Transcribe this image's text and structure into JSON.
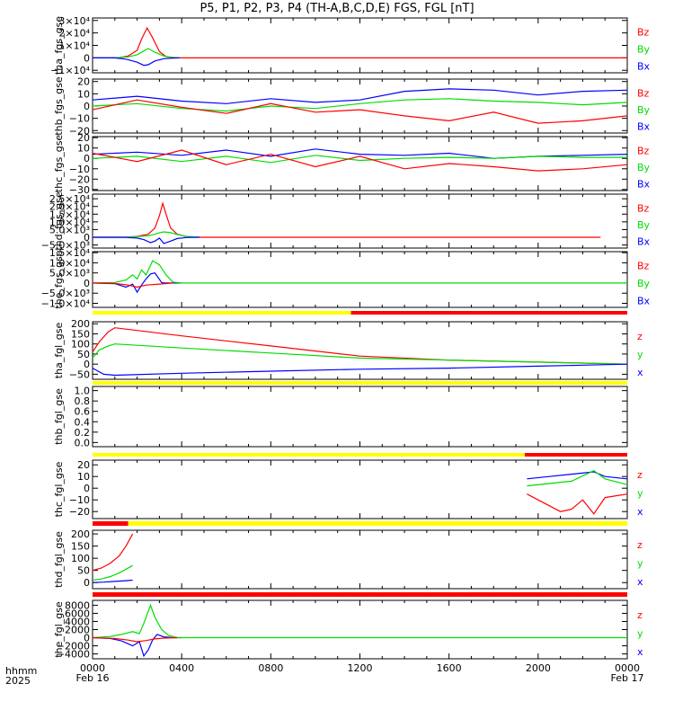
{
  "title": "P5, P1, P2, P3, P4 (TH-A,B,C,D,E) FGS, FGL [nT]",
  "colors": {
    "x": "#0000ff",
    "y": "#00dd00",
    "z": "#ff0000",
    "bar_red": "#ff0000",
    "bar_yellow": "#ffff00",
    "axis": "#000000"
  },
  "footer": {
    "row1": "hhmm",
    "row2": "2025"
  },
  "x_axis": {
    "range_hours": [
      0,
      24
    ],
    "ticks": [
      {
        "label": "0000",
        "sub": "Feb 16"
      },
      {
        "label": "0400",
        "sub": ""
      },
      {
        "label": "0800",
        "sub": ""
      },
      {
        "label": "1200",
        "sub": ""
      },
      {
        "label": "1600",
        "sub": ""
      },
      {
        "label": "2000",
        "sub": ""
      },
      {
        "label": "0000",
        "sub": "Feb 17"
      }
    ]
  },
  "chart_data": [
    {
      "type": "line",
      "ylabel": "tha_fgs_gse",
      "legend": [
        "Bz",
        "By",
        "Bx"
      ],
      "ylim": [
        -12000,
        32000
      ],
      "yticks": [
        "3×10⁴",
        "2×10⁴",
        "1×10⁴",
        "0",
        "−1×10⁴"
      ],
      "ytick_values": [
        30000,
        20000,
        10000,
        0,
        -10000
      ],
      "series": [
        {
          "name": "Bz",
          "color": "#ff0000",
          "x": [
            0,
            0.8,
            1.2,
            1.6,
            2.0,
            2.2,
            2.45,
            2.7,
            3.0,
            3.3,
            3.6,
            3.9,
            24
          ],
          "y": [
            0,
            0,
            200,
            1500,
            6000,
            15000,
            24000,
            16000,
            5000,
            1000,
            300,
            0,
            0
          ]
        },
        {
          "name": "By",
          "color": "#00dd00",
          "x": [
            0,
            1.0,
            1.6,
            2.0,
            2.3,
            2.5,
            2.8,
            3.2,
            3.6,
            3.9
          ],
          "y": [
            0,
            0,
            800,
            2500,
            5500,
            7500,
            4500,
            1500,
            200,
            0
          ]
        },
        {
          "name": "Bx",
          "color": "#0000ff",
          "x": [
            0,
            1.0,
            1.5,
            2.0,
            2.3,
            2.5,
            2.8,
            3.2,
            3.6,
            3.9
          ],
          "y": [
            0,
            0,
            -1000,
            -3500,
            -6000,
            -5500,
            -2500,
            -700,
            -200,
            0
          ]
        }
      ]
    },
    {
      "type": "line",
      "ylabel": "thb_fgs_gse",
      "legend": [
        "Bz",
        "By",
        "Bx"
      ],
      "ylim": [
        -22,
        22
      ],
      "yticks": [
        "20",
        "10",
        "0",
        "−10",
        "−20"
      ],
      "ytick_values": [
        20,
        10,
        0,
        -10,
        -20
      ],
      "series": [
        {
          "name": "Bx",
          "color": "#0000ff",
          "x": [
            0,
            2,
            4,
            6,
            8,
            10,
            12,
            14,
            16,
            18,
            20,
            22,
            24
          ],
          "y": [
            5,
            8,
            4,
            2,
            6,
            3,
            5,
            12,
            14,
            13,
            9,
            12,
            13
          ]
        },
        {
          "name": "By",
          "color": "#00dd00",
          "x": [
            0,
            2,
            4,
            6,
            8,
            10,
            12,
            14,
            16,
            18,
            20,
            22,
            24
          ],
          "y": [
            0,
            2,
            -2,
            -4,
            0,
            -2,
            2,
            5,
            6,
            4,
            3,
            1,
            3
          ]
        },
        {
          "name": "Bz",
          "color": "#ff0000",
          "x": [
            0,
            2,
            4,
            6,
            8,
            10,
            12,
            14,
            16,
            18,
            20,
            22,
            24
          ],
          "y": [
            -3,
            5,
            -1,
            -6,
            2,
            -5,
            -3,
            -8,
            -12,
            -5,
            -14,
            -12,
            -8
          ]
        }
      ]
    },
    {
      "type": "line",
      "ylabel": "thc_fgs_gse",
      "legend": [
        "Bz",
        "By",
        "Bx"
      ],
      "ylim": [
        -31,
        21
      ],
      "yticks": [
        "20",
        "10",
        "0",
        "−10",
        "−20",
        "−30"
      ],
      "ytick_values": [
        20,
        10,
        0,
        -10,
        -20,
        -30
      ],
      "series": [
        {
          "name": "Bx",
          "color": "#0000ff",
          "x": [
            0,
            2,
            4,
            6,
            8,
            10,
            12,
            14,
            16,
            18,
            20,
            22,
            24
          ],
          "y": [
            4,
            6,
            3,
            8,
            2,
            9,
            4,
            3,
            5,
            0,
            2,
            3,
            4
          ]
        },
        {
          "name": "By",
          "color": "#00dd00",
          "x": [
            0,
            2,
            4,
            6,
            8,
            10,
            12,
            14,
            16,
            18,
            20,
            22,
            24
          ],
          "y": [
            0,
            2,
            -3,
            2,
            -4,
            3,
            -2,
            0,
            1,
            0,
            2,
            1,
            1
          ]
        },
        {
          "name": "Bz",
          "color": "#ff0000",
          "x": [
            0,
            2,
            4,
            6,
            8,
            10,
            12,
            14,
            16,
            18,
            20,
            22,
            24
          ],
          "y": [
            5,
            -3,
            8,
            -6,
            4,
            -8,
            2,
            -10,
            -5,
            -8,
            -12,
            -10,
            -6
          ]
        }
      ]
    },
    {
      "type": "line",
      "ylabel": "thd_fgs_gse",
      "legend": [
        "Bz",
        "By",
        "Bx"
      ],
      "ylim": [
        -7000,
        28000
      ],
      "yticks": [
        "2.5×10⁴",
        "2.0×10⁴",
        "1.5×10⁴",
        "1.0×10⁴",
        "5.0×10³",
        "0",
        "−5.0×10³"
      ],
      "ytick_values": [
        25000,
        20000,
        15000,
        10000,
        5000,
        0,
        -5000
      ],
      "series": [
        {
          "name": "Bz",
          "color": "#ff0000",
          "x": [
            0,
            1.5,
            2.0,
            2.5,
            2.8,
            3.0,
            3.15,
            3.3,
            3.5,
            3.8,
            4.2,
            4.8,
            22.8
          ],
          "y": [
            0,
            100,
            500,
            2000,
            6000,
            14000,
            22000,
            15000,
            6000,
            2000,
            500,
            0,
            0
          ]
        },
        {
          "name": "By",
          "color": "#00dd00",
          "x": [
            0,
            1.5,
            2.0,
            2.5,
            2.8,
            3.0,
            3.2,
            3.5,
            3.8,
            4.2,
            4.8
          ],
          "y": [
            0,
            100,
            400,
            1000,
            2000,
            3000,
            3500,
            3000,
            1800,
            600,
            0
          ]
        },
        {
          "name": "Bx",
          "color": "#0000ff",
          "x": [
            0,
            1.5,
            2.0,
            2.3,
            2.6,
            2.8,
            3.0,
            3.2,
            3.5,
            3.8,
            4.2,
            4.8
          ],
          "y": [
            0,
            -100,
            -500,
            -1500,
            -3500,
            -2500,
            -500,
            -4000,
            -2500,
            -800,
            -200,
            0
          ]
        }
      ]
    },
    {
      "type": "line",
      "ylabel": "the_fgs_gse",
      "legend": [
        "Bz",
        "By",
        "Bx"
      ],
      "ylim": [
        -12000,
        15500
      ],
      "yticks": [
        "1.5×10⁴",
        "1.0×10⁴",
        "5.0×10³",
        "0",
        "−5.0×10³",
        "−1.0×10⁴"
      ],
      "ytick_values": [
        15000,
        10000,
        5000,
        0,
        -5000,
        -10000
      ],
      "series": [
        {
          "name": "Bx",
          "color": "#0000ff",
          "x": [
            0,
            1.0,
            1.5,
            1.8,
            2.0,
            2.2,
            2.4,
            2.6,
            2.8,
            3.1,
            3.2,
            3.6,
            4.0
          ],
          "y": [
            0,
            -300,
            -2000,
            -500,
            -4500,
            -1000,
            2000,
            4500,
            5000,
            200,
            0,
            0,
            0
          ]
        },
        {
          "name": "By",
          "color": "#00dd00",
          "x": [
            0,
            1.0,
            1.5,
            1.8,
            2.0,
            2.2,
            2.4,
            2.7,
            3.0,
            3.3,
            3.6,
            4.0,
            24
          ],
          "y": [
            0,
            300,
            1500,
            4000,
            2000,
            6500,
            4000,
            11000,
            9000,
            4000,
            500,
            0,
            0
          ]
        },
        {
          "name": "Bz",
          "color": "#ff0000",
          "x": [
            0,
            1.0,
            1.6,
            2.0,
            2.4,
            3.0,
            3.6
          ],
          "y": [
            0,
            -200,
            -1000,
            -2000,
            -1000,
            -500,
            0
          ]
        }
      ]
    },
    {
      "type": "line",
      "ylabel": "tha_fgl_gse",
      "legend": [
        "z",
        "y",
        "x"
      ],
      "ylim": [
        -75,
        210
      ],
      "yticks": [
        "200",
        "150",
        "100",
        "50",
        "0",
        "−50"
      ],
      "ytick_values": [
        200,
        150,
        100,
        50,
        0,
        -50
      ],
      "series": [
        {
          "name": "z",
          "color": "#ff0000",
          "x": [
            0,
            0.3,
            0.7,
            1.0,
            4,
            8,
            12,
            16,
            20,
            22,
            24
          ],
          "y": [
            60,
            110,
            160,
            180,
            140,
            90,
            40,
            20,
            10,
            5,
            0
          ]
        },
        {
          "name": "y",
          "color": "#00dd00",
          "x": [
            0,
            0.3,
            0.7,
            1.0,
            4,
            8,
            12,
            16,
            20,
            22,
            24
          ],
          "y": [
            30,
            70,
            90,
            100,
            80,
            55,
            30,
            20,
            10,
            5,
            0
          ]
        },
        {
          "name": "x",
          "color": "#0000ff",
          "x": [
            0,
            0.5,
            1.0,
            4,
            8,
            12,
            16,
            20,
            22,
            24
          ],
          "y": [
            -20,
            -50,
            -55,
            -45,
            -35,
            -25,
            -20,
            -10,
            -5,
            0
          ]
        }
      ]
    },
    {
      "type": "line",
      "ylabel": "thb_fgl_gse",
      "legend": [],
      "ylim": [
        -0.08,
        1.08
      ],
      "yticks": [
        "1.0",
        "0.8",
        "0.6",
        "0.4",
        "0.2",
        "0.0"
      ],
      "ytick_values": [
        1.0,
        0.8,
        0.6,
        0.4,
        0.2,
        0.0
      ],
      "series": []
    },
    {
      "type": "line",
      "ylabel": "thc_fgl_gse",
      "legend": [
        "z",
        "y",
        "x"
      ],
      "ylim": [
        -26,
        24
      ],
      "yticks": [
        "20",
        "10",
        "0",
        "−10",
        "−20"
      ],
      "ytick_values": [
        20,
        10,
        0,
        -10,
        -20
      ],
      "series": [
        {
          "name": "x",
          "color": "#0000ff",
          "x": [
            19.5,
            20.5,
            21.5,
            22.5,
            23.0,
            24
          ],
          "y": [
            8,
            10,
            12,
            14,
            10,
            8
          ]
        },
        {
          "name": "y",
          "color": "#00dd00",
          "x": [
            19.5,
            20.5,
            21.5,
            22.5,
            23.0,
            24
          ],
          "y": [
            2,
            4,
            6,
            15,
            8,
            3
          ]
        },
        {
          "name": "z",
          "color": "#ff0000",
          "x": [
            19.5,
            20.5,
            21.0,
            21.5,
            22.0,
            22.5,
            23.0,
            24
          ],
          "y": [
            -5,
            -15,
            -20,
            -18,
            -10,
            -22,
            -8,
            -5
          ]
        }
      ]
    },
    {
      "type": "line",
      "ylabel": "thd_fgl_gse",
      "legend": [
        "z",
        "y",
        "x"
      ],
      "ylim": [
        -25,
        215
      ],
      "yticks": [
        "200",
        "150",
        "100",
        "50",
        "0"
      ],
      "ytick_values": [
        200,
        150,
        100,
        50,
        0
      ],
      "series": [
        {
          "name": "z",
          "color": "#ff0000",
          "x": [
            0,
            0.4,
            0.8,
            1.2,
            1.5,
            1.8
          ],
          "y": [
            50,
            60,
            80,
            110,
            150,
            200
          ]
        },
        {
          "name": "y",
          "color": "#00dd00",
          "x": [
            0,
            0.4,
            0.8,
            1.2,
            1.5,
            1.8
          ],
          "y": [
            10,
            15,
            25,
            40,
            55,
            70
          ]
        },
        {
          "name": "x",
          "color": "#0000ff",
          "x": [
            0,
            0.5,
            1.0,
            1.5,
            1.8
          ],
          "y": [
            0,
            2,
            5,
            8,
            10
          ]
        }
      ]
    },
    {
      "type": "line",
      "ylabel": "the_fgl_gse",
      "legend": [
        "z",
        "y",
        "x"
      ],
      "ylim": [
        -5200,
        9200
      ],
      "yticks": [
        "8000",
        "6000",
        "4000",
        "2000",
        "0",
        "−2000",
        "−4000"
      ],
      "ytick_values": [
        8000,
        6000,
        4000,
        2000,
        0,
        -2000,
        -4000
      ],
      "series": [
        {
          "name": "x",
          "color": "#0000ff",
          "x": [
            0,
            0.8,
            1.3,
            1.8,
            2.1,
            2.3,
            2.5,
            2.7,
            2.9,
            3.2,
            3.6,
            4.0
          ],
          "y": [
            0,
            -200,
            -800,
            -2000,
            -1000,
            -4500,
            -3000,
            -500,
            800,
            200,
            0,
            0
          ]
        },
        {
          "name": "y",
          "color": "#00dd00",
          "x": [
            0,
            0.8,
            1.3,
            1.8,
            2.1,
            2.3,
            2.6,
            2.8,
            3.1,
            3.4,
            3.8,
            24
          ],
          "y": [
            0,
            300,
            800,
            1500,
            1000,
            3500,
            8000,
            5000,
            2000,
            600,
            0,
            0
          ]
        },
        {
          "name": "z",
          "color": "#ff0000",
          "x": [
            0,
            1.0,
            1.6,
            2.0,
            2.4,
            2.8,
            3.2,
            3.8
          ],
          "y": [
            0,
            -200,
            -600,
            -1000,
            -700,
            -300,
            -100,
            0
          ]
        }
      ]
    }
  ],
  "status_bars": [
    {
      "segments": [
        {
          "from": 0,
          "to": 11.6,
          "color": "#ffff00"
        },
        {
          "from": 11.6,
          "to": 24,
          "color": "#ff0000"
        }
      ]
    },
    {
      "segments": [
        {
          "from": 0,
          "to": 24,
          "color": "#ffff00"
        }
      ]
    },
    {
      "segments": [
        {
          "from": 0,
          "to": 19.4,
          "color": "#ffff00"
        },
        {
          "from": 19.4,
          "to": 24,
          "color": "#ff0000"
        }
      ]
    },
    {
      "segments": [
        {
          "from": 0,
          "to": 1.6,
          "color": "#ff0000"
        },
        {
          "from": 1.6,
          "to": 24,
          "color": "#ffff00"
        }
      ]
    },
    {
      "segments": [
        {
          "from": 0,
          "to": 24,
          "color": "#ff0000"
        }
      ]
    }
  ]
}
